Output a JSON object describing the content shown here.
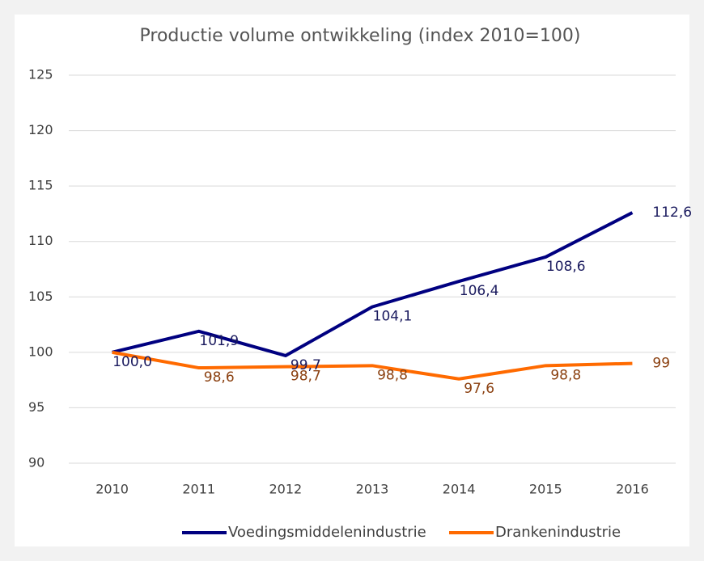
{
  "chart_data": {
    "type": "line",
    "title": "Productie volume ontwikkeling (index 2010=100)",
    "categories": [
      "2010",
      "2011",
      "2012",
      "2013",
      "2014",
      "2015",
      "2016"
    ],
    "series": [
      {
        "name": "Voedingsmiddelenindustrie",
        "color": "#000080",
        "values": [
          100.0,
          101.9,
          99.7,
          104.1,
          106.4,
          108.6,
          112.6
        ],
        "value_labels": [
          "100,0",
          "101,9",
          "99,7",
          "104,1",
          "106,4",
          "108,6",
          "112,6"
        ]
      },
      {
        "name": "Drankenindustrie",
        "color": "#ff6a00",
        "values": [
          100.0,
          98.6,
          98.7,
          98.8,
          97.6,
          98.8,
          99
        ],
        "value_labels": [
          null,
          "98,6",
          "98,7",
          "98,8",
          "97,6",
          "98,8",
          "99"
        ]
      }
    ],
    "ylim": [
      90,
      125
    ],
    "yticks": [
      90,
      95,
      100,
      105,
      110,
      115,
      120,
      125
    ],
    "grid": true,
    "legend": "bottom"
  }
}
